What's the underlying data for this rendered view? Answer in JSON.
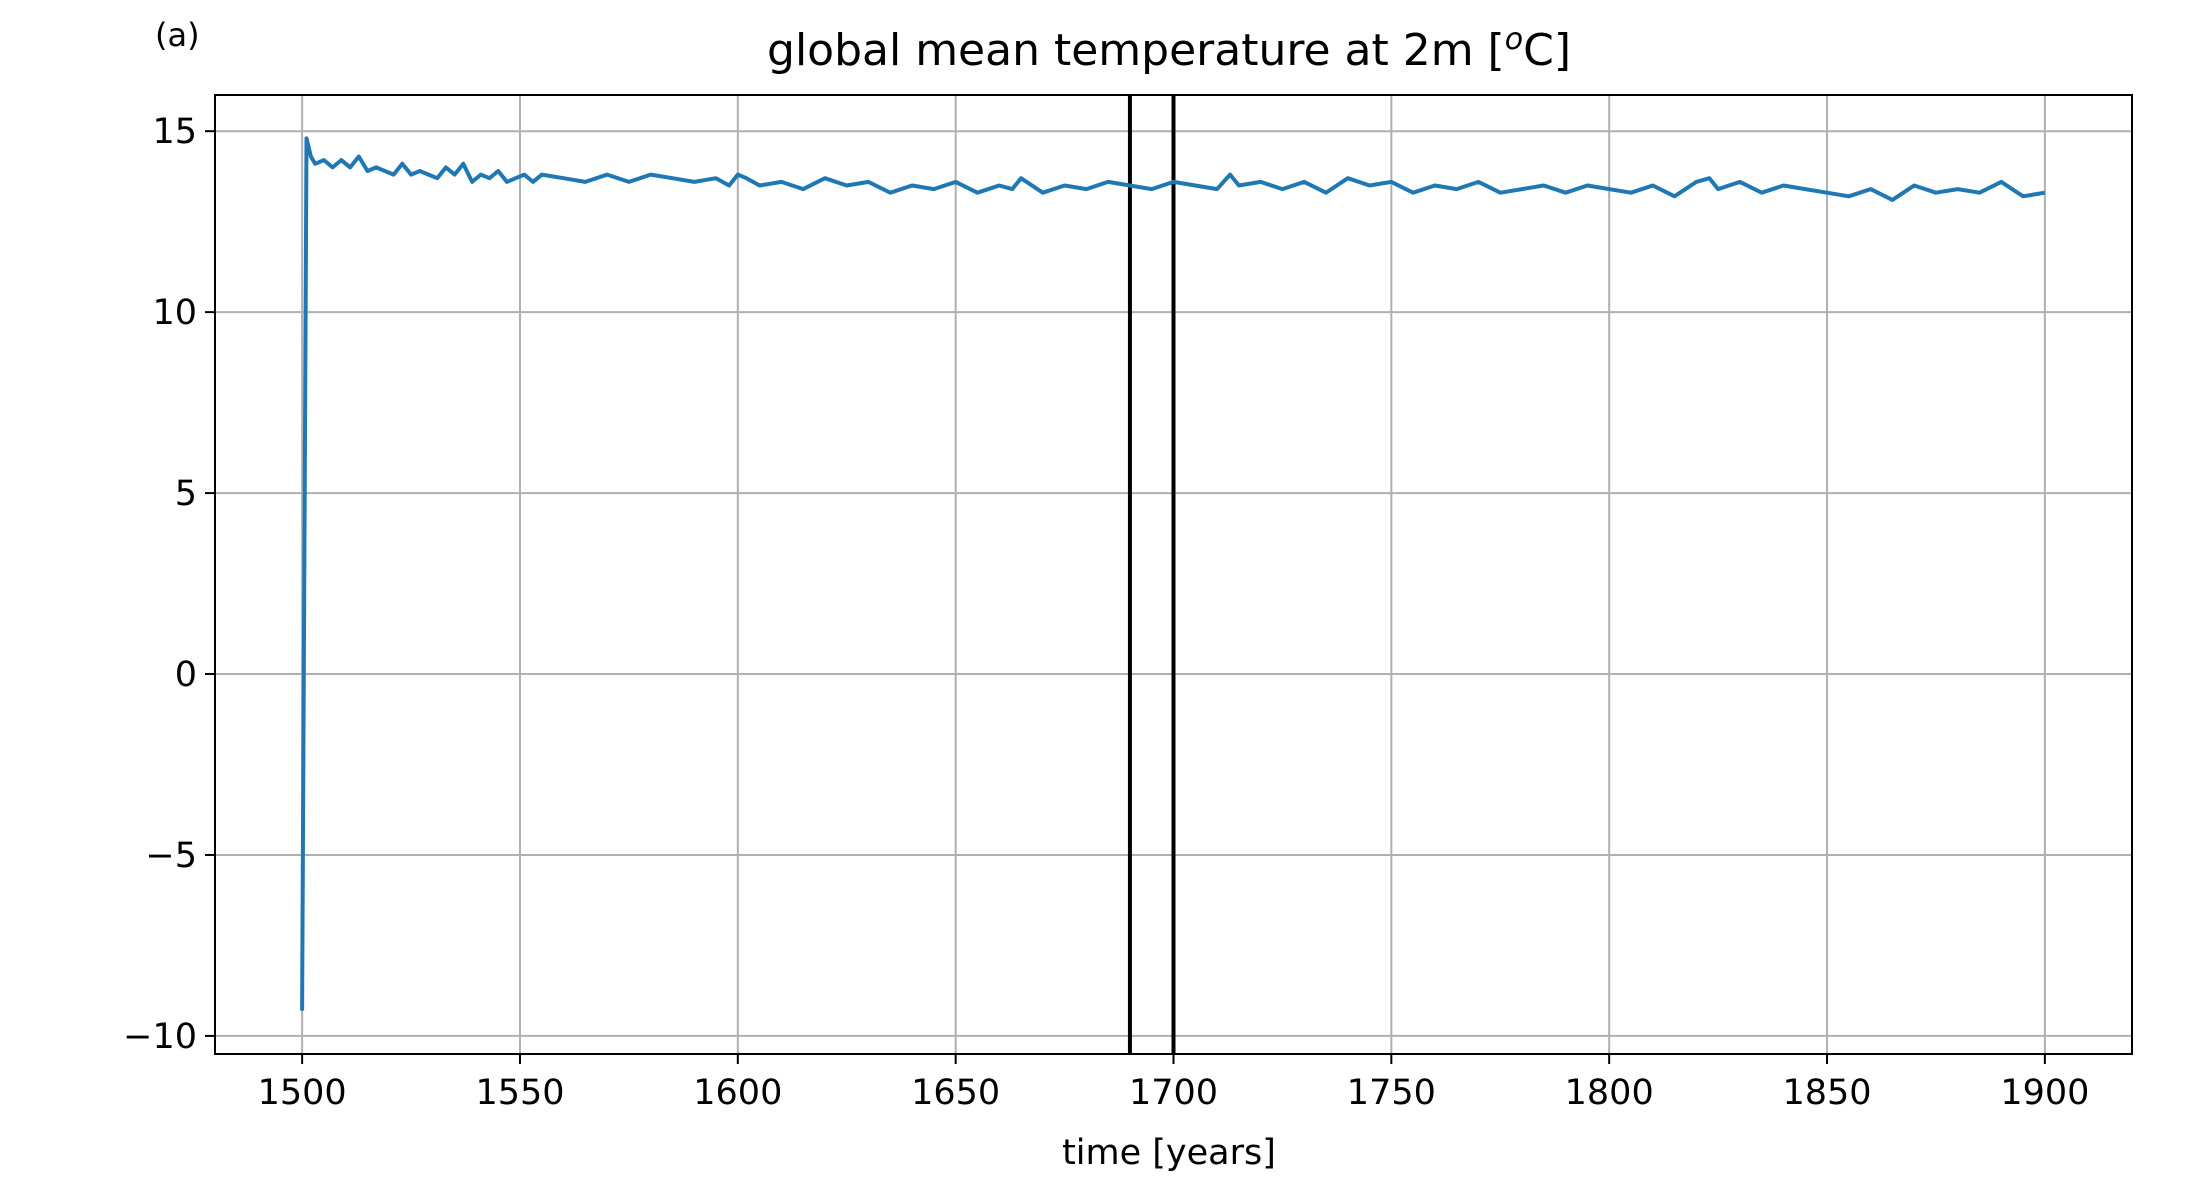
{
  "panel_label": "(a)",
  "chart_data": {
    "type": "line",
    "title_main": "global mean temperature at 2m [",
    "title_sup": "o",
    "title_end": "C]",
    "xlabel": "time [years]",
    "ylabel": "",
    "xlim": [
      1480,
      1920
    ],
    "ylim": [
      -10.5,
      16
    ],
    "xticks": [
      1500,
      1550,
      1600,
      1650,
      1700,
      1750,
      1800,
      1850,
      1900
    ],
    "xtick_labels": [
      "1500",
      "1550",
      "1600",
      "1650",
      "1700",
      "1750",
      "1800",
      "1850",
      "1900"
    ],
    "yticks": [
      -10,
      -5,
      0,
      5,
      10,
      15
    ],
    "ytick_labels": [
      "−10",
      "−5",
      "0",
      "5",
      "10",
      "15"
    ],
    "grid": true,
    "vlines": [
      1690,
      1700
    ],
    "colors": {
      "series": "#1f77b4",
      "vlines": "#000000",
      "grid": "#b0b0b0"
    },
    "series": [
      {
        "x": [
          1500,
          1501,
          1502,
          1503,
          1505,
          1507,
          1509,
          1511,
          1513,
          1515,
          1517,
          1519,
          1521,
          1523,
          1525,
          1527,
          1529,
          1531,
          1533,
          1535,
          1537,
          1539,
          1541,
          1543,
          1545,
          1547,
          1549,
          1551,
          1553,
          1555,
          1560,
          1565,
          1570,
          1575,
          1580,
          1585,
          1590,
          1595,
          1598,
          1600,
          1602,
          1605,
          1610,
          1615,
          1620,
          1625,
          1630,
          1635,
          1640,
          1645,
          1650,
          1655,
          1660,
          1663,
          1665,
          1670,
          1675,
          1680,
          1685,
          1690,
          1695,
          1700,
          1705,
          1710,
          1713,
          1715,
          1720,
          1725,
          1730,
          1735,
          1740,
          1745,
          1750,
          1755,
          1760,
          1765,
          1770,
          1775,
          1780,
          1785,
          1790,
          1795,
          1800,
          1805,
          1810,
          1815,
          1820,
          1823,
          1825,
          1830,
          1835,
          1840,
          1845,
          1850,
          1855,
          1860,
          1865,
          1870,
          1875,
          1880,
          1885,
          1890,
          1895,
          1900
        ],
        "y": [
          -9.3,
          14.8,
          14.3,
          14.1,
          14.2,
          14.0,
          14.2,
          14.0,
          14.3,
          13.9,
          14.0,
          13.9,
          13.8,
          14.1,
          13.8,
          13.9,
          13.8,
          13.7,
          14.0,
          13.8,
          14.1,
          13.6,
          13.8,
          13.7,
          13.9,
          13.6,
          13.7,
          13.8,
          13.6,
          13.8,
          13.7,
          13.6,
          13.8,
          13.6,
          13.8,
          13.7,
          13.6,
          13.7,
          13.5,
          13.8,
          13.7,
          13.5,
          13.6,
          13.4,
          13.7,
          13.5,
          13.6,
          13.3,
          13.5,
          13.4,
          13.6,
          13.3,
          13.5,
          13.4,
          13.7,
          13.3,
          13.5,
          13.4,
          13.6,
          13.5,
          13.4,
          13.6,
          13.5,
          13.4,
          13.8,
          13.5,
          13.6,
          13.4,
          13.6,
          13.3,
          13.7,
          13.5,
          13.6,
          13.3,
          13.5,
          13.4,
          13.6,
          13.3,
          13.4,
          13.5,
          13.3,
          13.5,
          13.4,
          13.3,
          13.5,
          13.2,
          13.6,
          13.7,
          13.4,
          13.6,
          13.3,
          13.5,
          13.4,
          13.3,
          13.2,
          13.4,
          13.1,
          13.5,
          13.3,
          13.4,
          13.3,
          13.6,
          13.2,
          13.3
        ]
      }
    ]
  }
}
